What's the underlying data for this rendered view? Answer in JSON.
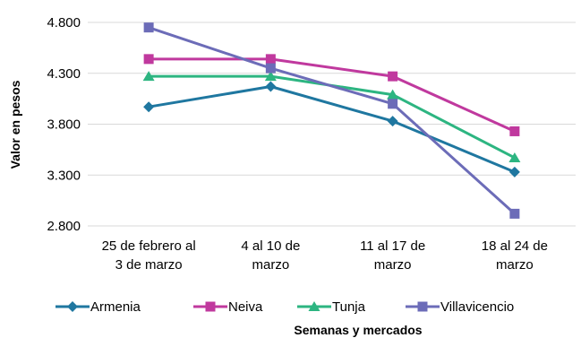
{
  "chart_data": {
    "type": "line",
    "xlabel": "Semanas y mercados",
    "ylabel": "Valor en pesos",
    "categories": [
      [
        "25 de febrero al",
        "3 de marzo"
      ],
      [
        "4 al 10 de",
        "marzo"
      ],
      [
        "11 al 17 de",
        "marzo"
      ],
      [
        "18 al 24 de",
        "marzo"
      ]
    ],
    "ylim": [
      2800,
      4800
    ],
    "yticks": [
      2800,
      3300,
      3800,
      4300,
      4800
    ],
    "ytick_labels": [
      "2.800",
      "3.300",
      "3.800",
      "4.300",
      "4.800"
    ],
    "grid": "horizontal",
    "legend_position": "bottom",
    "series": [
      {
        "name": "Armenia",
        "values": [
          3970,
          4170,
          3830,
          3330
        ],
        "color": "#1f77a0",
        "marker": "diamond"
      },
      {
        "name": "Neiva",
        "values": [
          4440,
          4440,
          4270,
          3730
        ],
        "color": "#c0399e",
        "marker": "square"
      },
      {
        "name": "Tunja",
        "values": [
          4270,
          4270,
          4090,
          3470
        ],
        "color": "#2db581",
        "marker": "triangle"
      },
      {
        "name": "Villavicencio",
        "values": [
          4750,
          4350,
          4000,
          2920
        ],
        "color": "#6c6cb8",
        "marker": "square"
      }
    ]
  }
}
